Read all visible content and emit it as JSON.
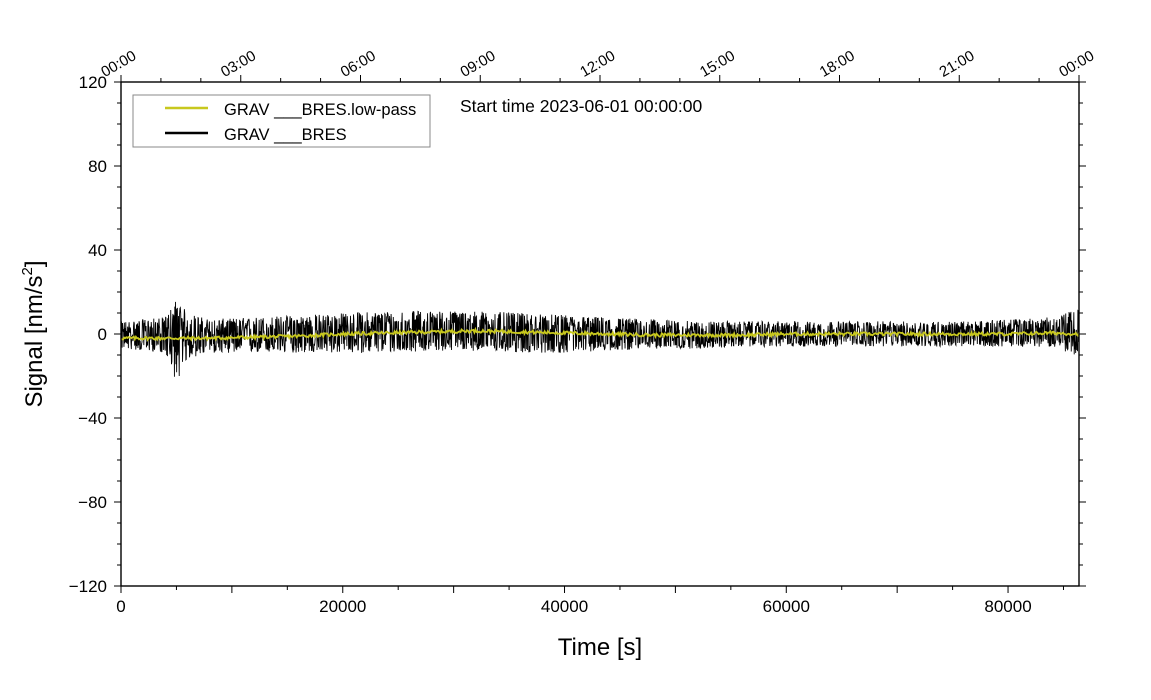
{
  "chart_data": {
    "type": "line",
    "title": "",
    "annotation": "Start time 2023-06-01 00:00:00",
    "xlabel": "Time [s]",
    "ylabel": "Signal [nm/s",
    "ylabel_sup": "2",
    "ylabel_close": "]",
    "xlim": [
      0,
      86400
    ],
    "ylim": [
      -120,
      120
    ],
    "x_ticks": [
      0,
      20000,
      40000,
      60000,
      80000
    ],
    "x_tick_labels": [
      "0",
      "20000",
      "40000",
      "60000",
      "80000"
    ],
    "y_ticks": [
      -120,
      -80,
      -40,
      0,
      40,
      80,
      120
    ],
    "y_tick_labels": [
      "−120",
      "−80",
      "−40",
      "0",
      "40",
      "80",
      "120"
    ],
    "top_axis_ticks_s": [
      0,
      10800,
      21600,
      32400,
      43200,
      54000,
      64800,
      75600,
      86400
    ],
    "top_axis_labels": [
      "00:00",
      "03:00",
      "06:00",
      "09:00",
      "12:00",
      "15:00",
      "18:00",
      "21:00",
      "00:00"
    ],
    "grid": false,
    "legend_position": "top-left",
    "series": [
      {
        "name": "GRAV ___BRES",
        "color": "#000000",
        "x": [
          0,
          2000,
          4000,
          5000,
          6000,
          8000,
          12000,
          16000,
          20000,
          24000,
          28000,
          32000,
          36000,
          40000,
          44000,
          48000,
          52000,
          56000,
          60000,
          64000,
          68000,
          72000,
          76000,
          80000,
          84000,
          86400
        ],
        "upper": [
          6,
          7,
          8,
          17,
          10,
          7,
          8,
          9,
          10,
          11,
          11,
          11,
          10,
          9,
          8,
          7,
          6,
          6,
          6,
          6,
          6,
          6,
          6,
          7,
          8,
          12
        ],
        "lower": [
          -7,
          -8,
          -9,
          -23,
          -12,
          -9,
          -9,
          -9,
          -9,
          -9,
          -8,
          -8,
          -9,
          -9,
          -8,
          -7,
          -7,
          -6,
          -6,
          -6,
          -6,
          -6,
          -6,
          -6,
          -6,
          -11
        ]
      },
      {
        "name": "GRAV ___BRES.low-pass",
        "color": "#c8c81e",
        "x": [
          0,
          4000,
          8000,
          12000,
          16000,
          20000,
          24000,
          28000,
          32000,
          36000,
          40000,
          44000,
          48000,
          52000,
          56000,
          60000,
          64000,
          68000,
          72000,
          76000,
          80000,
          84000,
          86400
        ],
        "values": [
          -2,
          -2,
          -2,
          -1.5,
          -1,
          0,
          0.5,
          1,
          1.5,
          1,
          0.5,
          0,
          -0.5,
          -0.5,
          -0.5,
          0,
          0,
          0,
          0,
          0,
          0,
          0.5,
          0
        ]
      }
    ]
  }
}
